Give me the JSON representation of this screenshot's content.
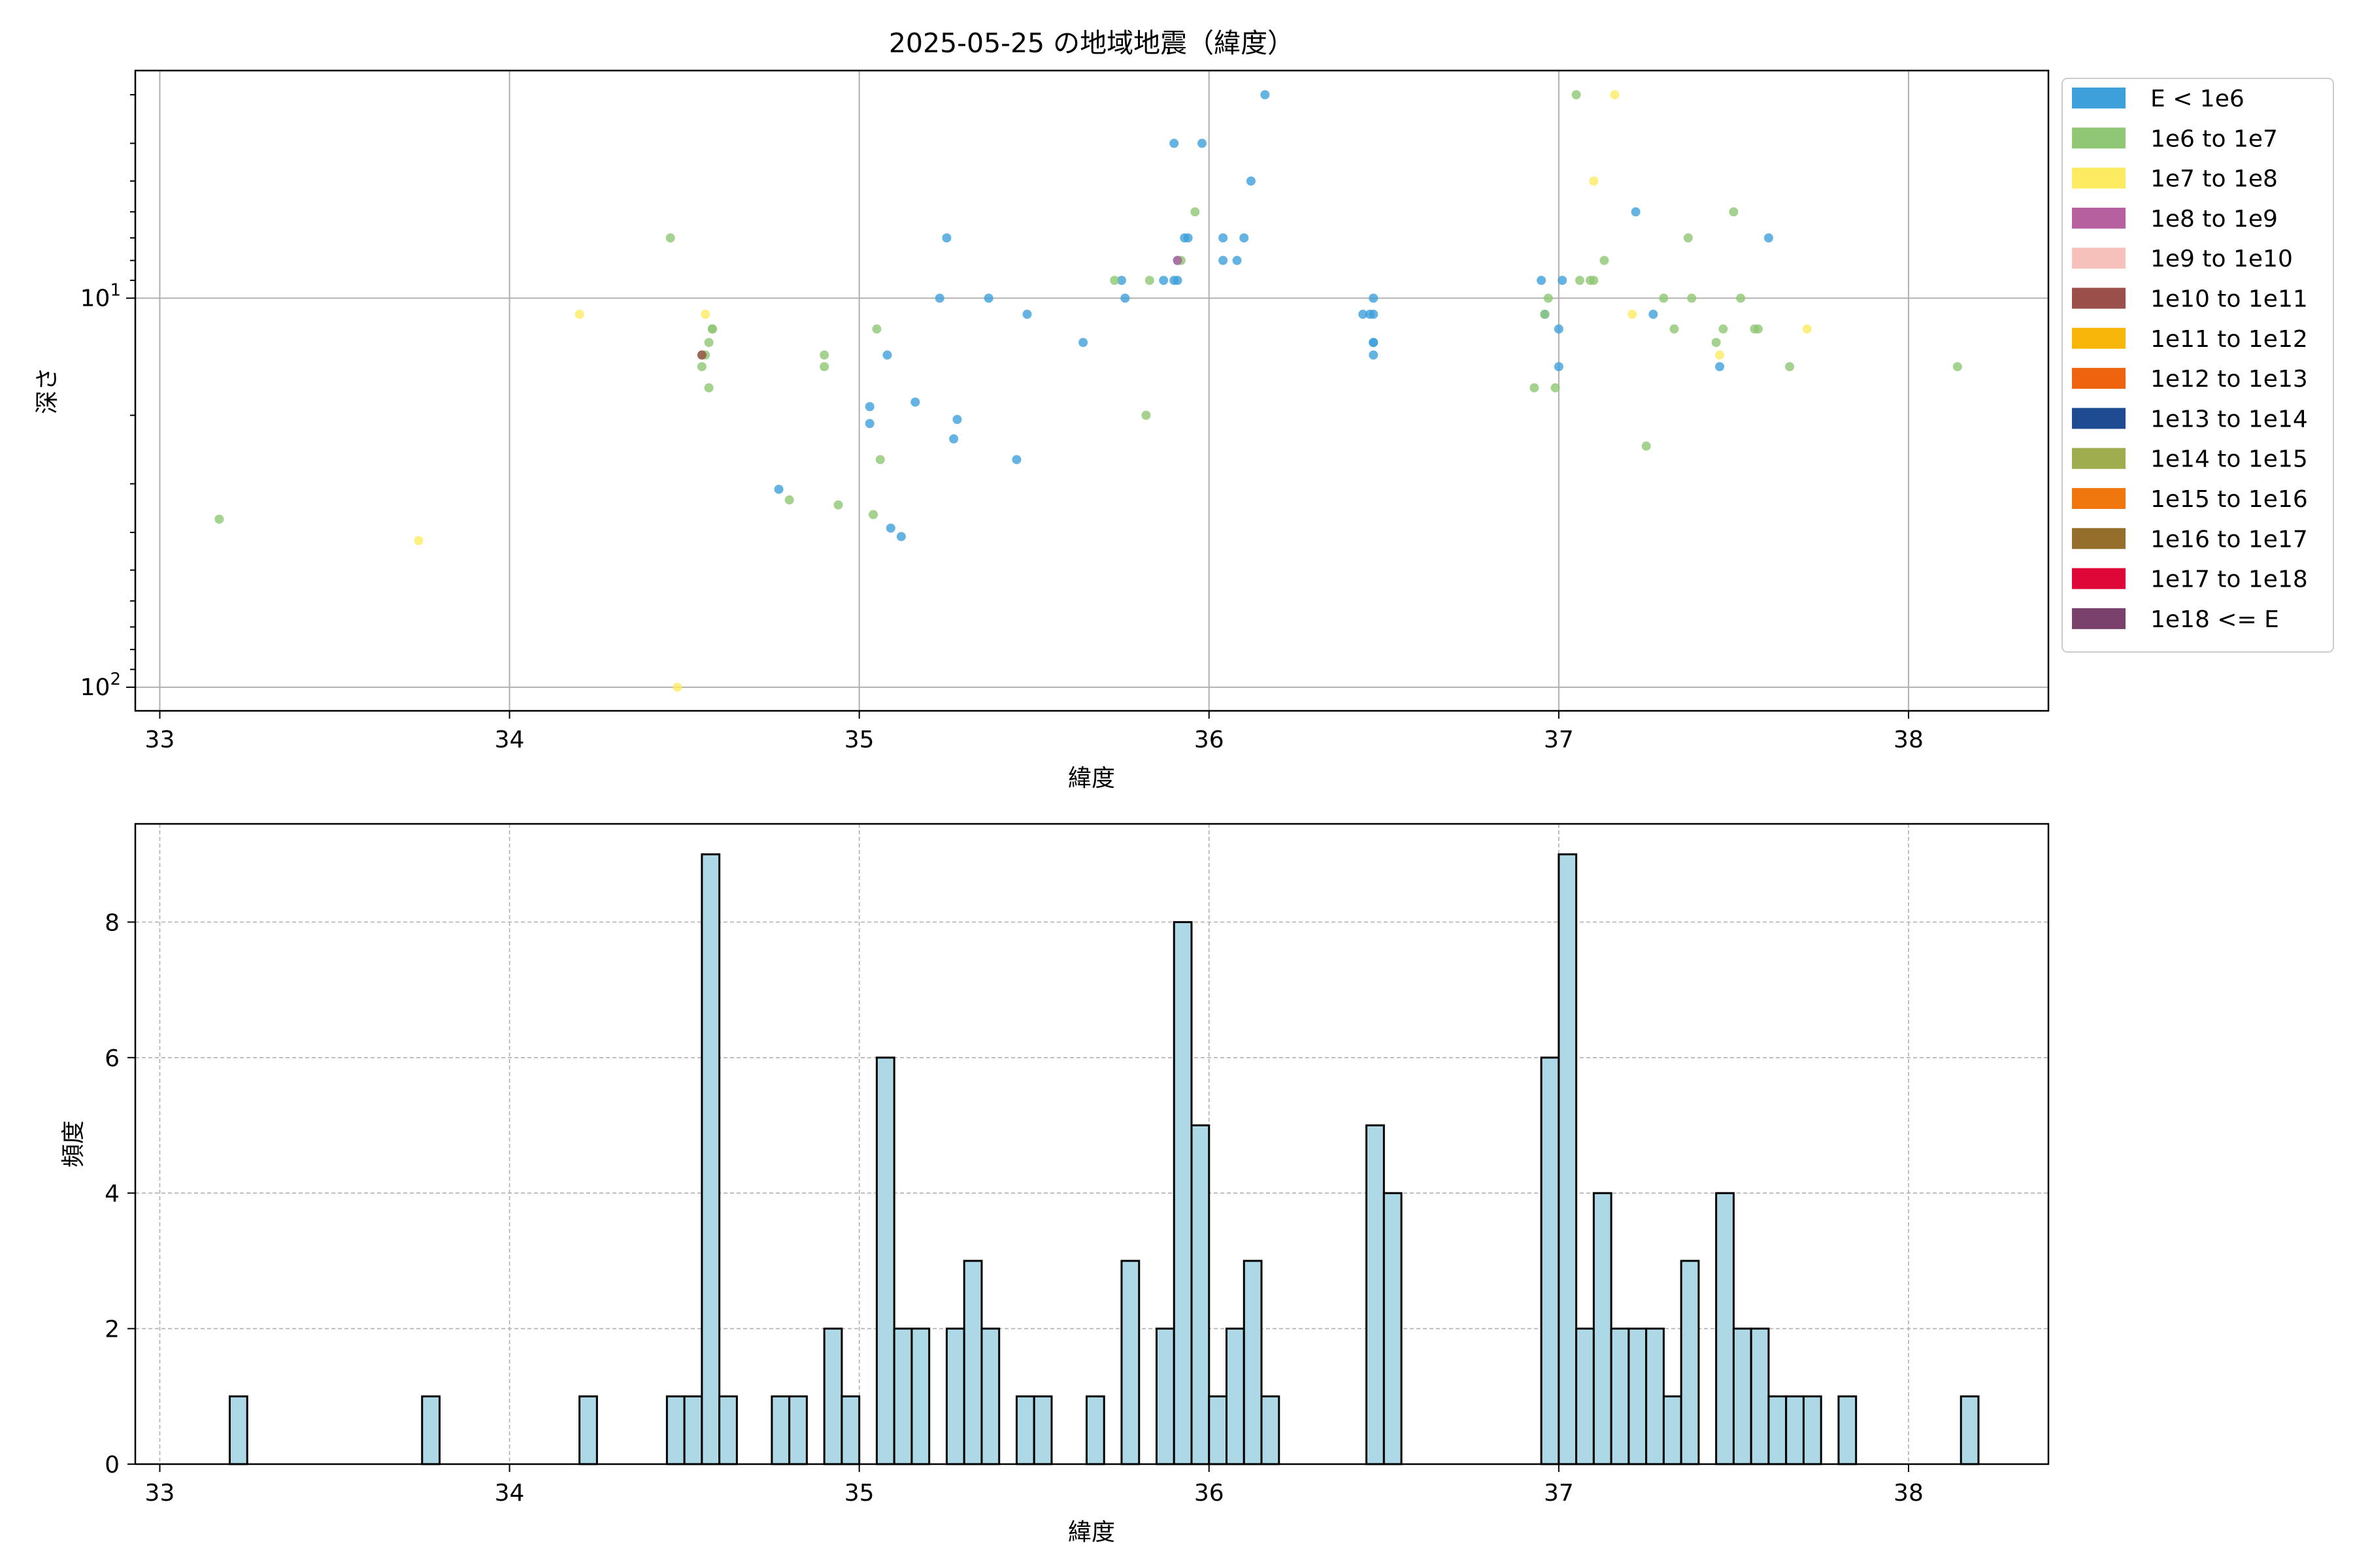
{
  "title": "2025-05-25 の地域地震（緯度）",
  "colors": {
    "hist_fill": "#add8e6",
    "grid": "#b0b0b0",
    "axis": "#000000"
  },
  "legend": {
    "placement": "outside-right-top",
    "entries": [
      {
        "label": "E < 1e6",
        "color": "#3ea0db"
      },
      {
        "label": "1e6 to 1e7",
        "color": "#90c774"
      },
      {
        "label": "1e7 to 1e8",
        "color": "#fdeb61"
      },
      {
        "label": "1e8 to 1e9",
        "color": "#b7609f"
      },
      {
        "label": "1e9 to 1e10",
        "color": "#f6c1bb"
      },
      {
        "label": "1e10 to 1e11",
        "color": "#9b4f4a"
      },
      {
        "label": "1e11 to 1e12",
        "color": "#f8b60b"
      },
      {
        "label": "1e12 to 1e13",
        "color": "#ee630d"
      },
      {
        "label": "1e13 to 1e14",
        "color": "#1e4b91"
      },
      {
        "label": "1e14 to 1e15",
        "color": "#9fad4e"
      },
      {
        "label": "1e15 to 1e16",
        "color": "#ef770d"
      },
      {
        "label": "1e16 to 1e17",
        "color": "#956e2c"
      },
      {
        "label": "1e17 to 1e18",
        "color": "#de0738"
      },
      {
        "label": "1e18 <= E",
        "color": "#7a416c"
      }
    ]
  },
  "chart_data": [
    {
      "type": "scatter",
      "title": "2025-05-25 の地域地震（緯度）",
      "xlabel": "緯度",
      "ylabel": "深さ",
      "xlim": [
        32.93,
        38.4
      ],
      "ylim": [
        115,
        2.6
      ],
      "yscale": "log",
      "y_inverted": true,
      "xticks": [
        "33",
        "34",
        "35",
        "36",
        "37",
        "38"
      ],
      "yticks": [
        {
          "value": 10,
          "base": "10",
          "exp": "1"
        },
        {
          "value": 100,
          "base": "10",
          "exp": "2"
        }
      ],
      "grid": true,
      "series": [
        {
          "name": "E < 1e6",
          "points": [
            [
              34.77,
              31
            ],
            [
              35.03,
              19
            ],
            [
              35.03,
              21
            ],
            [
              35.08,
              14
            ],
            [
              35.09,
              39
            ],
            [
              35.12,
              41
            ],
            [
              35.16,
              18.5
            ],
            [
              35.23,
              10
            ],
            [
              35.25,
              7
            ],
            [
              35.27,
              23
            ],
            [
              35.28,
              20.5
            ],
            [
              35.37,
              10
            ],
            [
              35.45,
              26
            ],
            [
              35.48,
              11
            ],
            [
              35.64,
              13
            ],
            [
              35.75,
              9
            ],
            [
              35.76,
              10
            ],
            [
              35.87,
              9
            ],
            [
              35.9,
              4
            ],
            [
              35.9,
              9
            ],
            [
              35.91,
              8
            ],
            [
              35.91,
              9
            ],
            [
              35.93,
              7
            ],
            [
              35.94,
              7
            ],
            [
              35.98,
              4
            ],
            [
              36.04,
              7
            ],
            [
              36.04,
              8
            ],
            [
              36.08,
              8
            ],
            [
              36.1,
              7
            ],
            [
              36.12,
              5
            ],
            [
              36.16,
              3
            ],
            [
              36.44,
              11
            ],
            [
              36.46,
              11
            ],
            [
              36.47,
              10
            ],
            [
              36.47,
              11
            ],
            [
              36.47,
              13
            ],
            [
              36.47,
              13
            ],
            [
              36.47,
              14
            ],
            [
              36.95,
              9
            ],
            [
              36.96,
              11
            ],
            [
              37.0,
              12
            ],
            [
              37.0,
              15
            ],
            [
              37.01,
              9
            ],
            [
              37.22,
              6
            ],
            [
              37.27,
              11
            ],
            [
              37.46,
              15
            ],
            [
              37.6,
              7
            ]
          ]
        },
        {
          "name": "1e6 to 1e7",
          "points": [
            [
              33.17,
              37
            ],
            [
              34.46,
              7
            ],
            [
              34.55,
              14
            ],
            [
              34.55,
              15
            ],
            [
              34.56,
              14
            ],
            [
              34.57,
              17
            ],
            [
              34.57,
              13
            ],
            [
              34.58,
              12
            ],
            [
              34.58,
              12
            ],
            [
              34.8,
              33
            ],
            [
              34.9,
              14
            ],
            [
              34.9,
              15
            ],
            [
              34.94,
              34
            ],
            [
              35.04,
              36
            ],
            [
              35.05,
              12
            ],
            [
              35.06,
              26
            ],
            [
              35.73,
              9
            ],
            [
              35.82,
              20
            ],
            [
              35.83,
              9
            ],
            [
              35.92,
              8
            ],
            [
              35.96,
              6
            ],
            [
              36.93,
              17
            ],
            [
              36.96,
              11
            ],
            [
              36.97,
              10
            ],
            [
              36.99,
              17
            ],
            [
              37.05,
              3
            ],
            [
              37.06,
              9
            ],
            [
              37.09,
              9
            ],
            [
              37.1,
              9
            ],
            [
              37.13,
              8
            ],
            [
              37.25,
              24
            ],
            [
              37.3,
              10
            ],
            [
              37.33,
              12
            ],
            [
              37.37,
              7
            ],
            [
              37.38,
              10
            ],
            [
              37.45,
              13
            ],
            [
              37.47,
              12
            ],
            [
              37.5,
              6
            ],
            [
              37.52,
              10
            ],
            [
              37.56,
              12
            ],
            [
              37.57,
              12
            ],
            [
              37.66,
              15
            ],
            [
              38.14,
              15
            ]
          ]
        },
        {
          "name": "1e7 to 1e8",
          "points": [
            [
              33.74,
              42
            ],
            [
              34.2,
              11
            ],
            [
              34.48,
              100
            ],
            [
              34.56,
              11
            ],
            [
              37.16,
              3
            ],
            [
              37.1,
              5
            ],
            [
              37.21,
              11
            ],
            [
              37.46,
              14
            ],
            [
              37.71,
              12
            ]
          ]
        },
        {
          "name": "1e8 to 1e9",
          "points": [
            [
              35.91,
              8
            ]
          ]
        },
        {
          "name": "1e10 to 1e11",
          "points": [
            [
              34.55,
              14
            ]
          ]
        }
      ]
    },
    {
      "type": "bar",
      "xlabel": "緯度",
      "ylabel": "頻度",
      "xlim": [
        32.93,
        38.4
      ],
      "ylim": [
        0,
        9.45
      ],
      "xticks": [
        "33",
        "34",
        "35",
        "36",
        "37",
        "38"
      ],
      "yticks": [
        "0",
        "2",
        "4",
        "6",
        "8"
      ],
      "grid": true,
      "bin_width": 0.05,
      "bins": [
        [
          33.2,
          1
        ],
        [
          33.75,
          1
        ],
        [
          34.2,
          1
        ],
        [
          34.45,
          1
        ],
        [
          34.5,
          1
        ],
        [
          34.55,
          9
        ],
        [
          34.6,
          1
        ],
        [
          34.75,
          1
        ],
        [
          34.8,
          1
        ],
        [
          34.9,
          2
        ],
        [
          34.95,
          1
        ],
        [
          35.05,
          6
        ],
        [
          35.1,
          2
        ],
        [
          35.15,
          2
        ],
        [
          35.25,
          2
        ],
        [
          35.3,
          3
        ],
        [
          35.35,
          2
        ],
        [
          35.45,
          1
        ],
        [
          35.5,
          1
        ],
        [
          35.65,
          1
        ],
        [
          35.75,
          3
        ],
        [
          35.85,
          2
        ],
        [
          35.9,
          8
        ],
        [
          35.95,
          5
        ],
        [
          36.0,
          1
        ],
        [
          36.05,
          2
        ],
        [
          36.1,
          3
        ],
        [
          36.15,
          1
        ],
        [
          36.45,
          5
        ],
        [
          36.5,
          4
        ],
        [
          36.95,
          6
        ],
        [
          37.0,
          9
        ],
        [
          37.05,
          2
        ],
        [
          37.1,
          4
        ],
        [
          37.15,
          2
        ],
        [
          37.2,
          2
        ],
        [
          37.25,
          2
        ],
        [
          37.3,
          1
        ],
        [
          37.35,
          3
        ],
        [
          37.45,
          4
        ],
        [
          37.5,
          2
        ],
        [
          37.55,
          2
        ],
        [
          37.6,
          1
        ],
        [
          37.65,
          1
        ],
        [
          37.7,
          1
        ],
        [
          37.8,
          1
        ],
        [
          38.15,
          1
        ]
      ]
    }
  ]
}
